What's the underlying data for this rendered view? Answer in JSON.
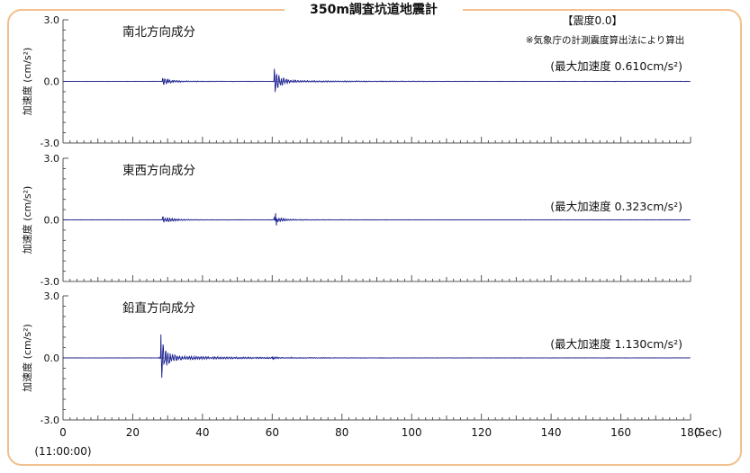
{
  "title": "350m調査坑道地震計",
  "intensity": {
    "label": "【震度0.0】",
    "note": "※気象庁の計測震度算出法により算出"
  },
  "chart_data": [
    {
      "type": "line",
      "title": "南北方向成分",
      "peak_label": "(最大加速度 0.610cm/s²)",
      "peak": 0.61,
      "ylabel": "加速度 (cm/s²)",
      "ylim": [
        -3.0,
        3.0
      ],
      "yticks": [
        "3.0",
        "0.0",
        "-3.0"
      ],
      "xlim": [
        0,
        180
      ],
      "events": [
        {
          "t": 28.5,
          "amp": 0.18,
          "decay": 3.0
        },
        {
          "t": 60.5,
          "amp": 0.61,
          "decay": 1.8
        }
      ]
    },
    {
      "type": "line",
      "title": "東西方向成分",
      "peak_label": "(最大加速度 0.323cm/s²)",
      "peak": 0.323,
      "ylabel": "加速度 (cm/s²)",
      "ylim": [
        -3.0,
        3.0
      ],
      "yticks": [
        "3.0",
        "0.0",
        "-3.0"
      ],
      "xlim": [
        0,
        180
      ],
      "events": [
        {
          "t": 28.5,
          "amp": 0.2,
          "decay": 2.5
        },
        {
          "t": 60.5,
          "amp": 0.22,
          "decay": 2.2
        }
      ]
    },
    {
      "type": "line",
      "title": "鉛直方向成分",
      "peak_label": "(最大加速度 1.130cm/s²)",
      "peak": 1.13,
      "ylabel": "加速度 (cm/s²)",
      "ylim": [
        -3.0,
        3.0
      ],
      "yticks": [
        "3.0",
        "0.0",
        "-3.0"
      ],
      "xlim": [
        0,
        180
      ],
      "events": [
        {
          "t": 28.0,
          "amp": 1.13,
          "decay": 1.5
        },
        {
          "t": 60.0,
          "amp": 0.12,
          "decay": 2.0
        }
      ]
    }
  ],
  "x_axis": {
    "ticks": [
      "0",
      "20",
      "40",
      "60",
      "80",
      "100",
      "120",
      "140",
      "160",
      "180"
    ],
    "unit": "(Sec)",
    "start_time": "(11:00:00)"
  },
  "colors": {
    "trace": "#1a1f8c",
    "frame": "#f2c08c",
    "axis": "#555555"
  }
}
